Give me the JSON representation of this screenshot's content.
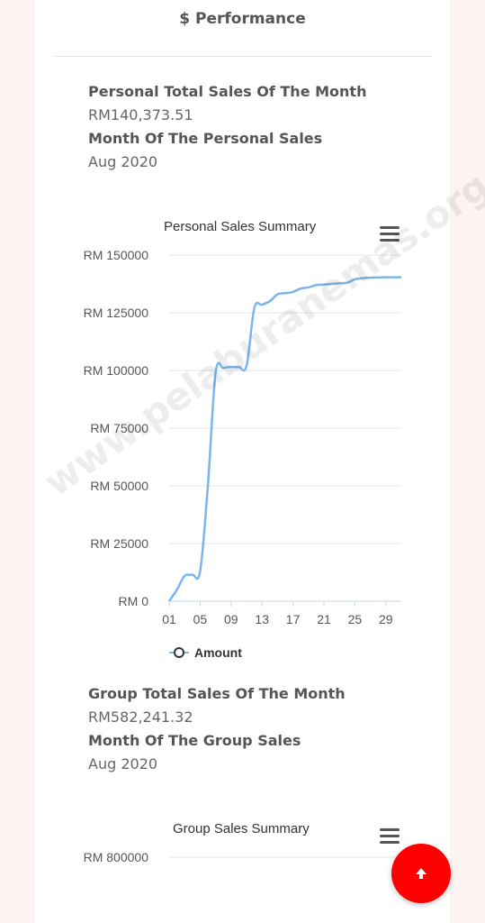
{
  "header": {
    "icon": "dollar-icon",
    "title": "$ Performance"
  },
  "personal": {
    "total_label": "Personal Total Sales Of The Month",
    "total_value": "RM140,373.51",
    "month_label": "Month Of The Personal Sales",
    "month_value": "Aug 2020"
  },
  "group": {
    "total_label": "Group Total Sales Of The Month",
    "total_value": "RM582,241.32",
    "month_label": "Month Of The Group Sales",
    "month_value": "Aug 2020"
  },
  "chart_data": [
    {
      "type": "line",
      "title": "Personal Sales Summary",
      "xlabel": "",
      "ylabel": "",
      "xlim": [
        1,
        31
      ],
      "ylim": [
        0,
        150000
      ],
      "y_ticks": [
        "RM 0",
        "RM 25000",
        "RM 50000",
        "RM 75000",
        "RM 100000",
        "RM 125000",
        "RM 150000"
      ],
      "x_ticks": [
        "01",
        "05",
        "09",
        "13",
        "17",
        "21",
        "25",
        "29"
      ],
      "grid": true,
      "legend": "bottom",
      "series": [
        {
          "name": "Amount",
          "color": "#7cb5ec",
          "x": [
            1,
            2,
            3,
            4,
            5,
            6,
            7,
            8,
            9,
            10,
            11,
            12,
            13,
            14,
            15,
            16,
            17,
            18,
            19,
            20,
            21,
            22,
            23,
            24,
            25,
            26,
            27,
            28,
            29,
            30,
            31
          ],
          "y": [
            0,
            5000,
            11000,
            11500,
            13000,
            50000,
            99000,
            101000,
            101500,
            101500,
            102000,
            127000,
            128500,
            130000,
            133000,
            133500,
            134000,
            135500,
            136000,
            137000,
            137200,
            137500,
            137800,
            138000,
            139500,
            140000,
            140200,
            140300,
            140370,
            140373,
            140373
          ]
        }
      ]
    },
    {
      "type": "line",
      "title": "Group Sales Summary",
      "y_ticks": [
        "RM 800000"
      ],
      "series": []
    }
  ],
  "watermark": "www.pelaburanemas.org",
  "fab": {
    "icon": "arrow-up-icon"
  }
}
